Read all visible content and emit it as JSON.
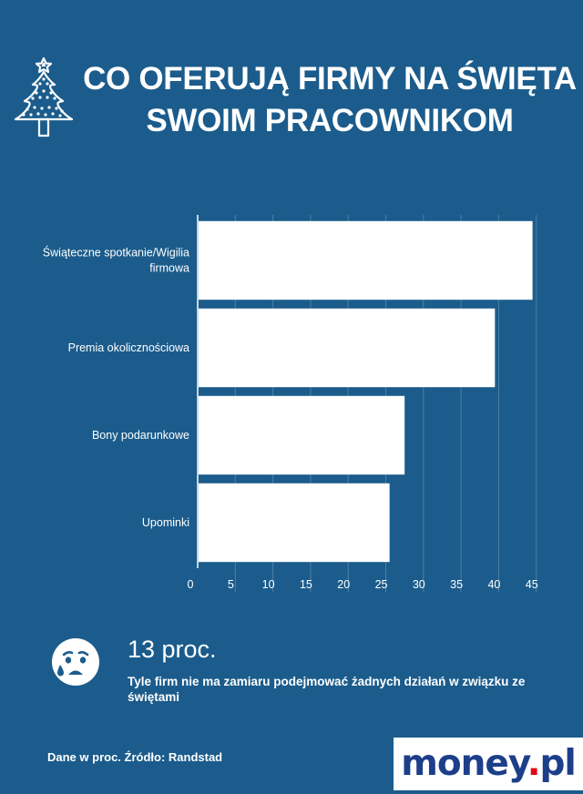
{
  "title": {
    "line1": "CO OFERUJĄ FIRMY NA ŚWIĘTA",
    "line2": "SWOIM PRACOWNIKOM"
  },
  "icons": {
    "header": "christmas-tree-icon",
    "callout": "sad-face-icon"
  },
  "colors": {
    "background": "#1b5c8c",
    "bars": "#ffffff",
    "text": "#ffffff",
    "logo_text": "#1d3f8a",
    "logo_dot": "#e30613"
  },
  "chart_data": {
    "type": "bar",
    "orientation": "horizontal",
    "categories": [
      "Świąteczne spotkanie/Wigilia firmowa",
      "Premia okolicznościowa",
      "Bony podarunkowe",
      "Upominki"
    ],
    "values": [
      44.5,
      39.5,
      27.5,
      25.5
    ],
    "xlim": [
      0,
      46
    ],
    "xticks": [
      0,
      5,
      10,
      15,
      20,
      25,
      30,
      35,
      40,
      45
    ],
    "grid": true
  },
  "callout": {
    "value": "13 proc.",
    "description": "Tyle firm nie ma zamiaru podejmować żadnych działań w związku ze świętami"
  },
  "source": "Dane w proc. Źródło: Randstad",
  "logo": {
    "name": "money",
    "dot": ".",
    "suffix": "pl"
  }
}
